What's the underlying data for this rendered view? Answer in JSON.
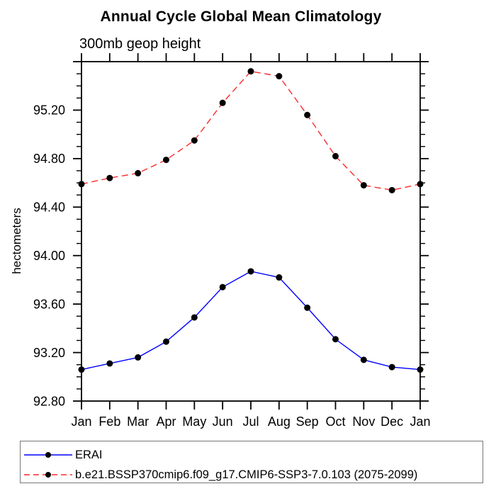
{
  "chart_data": {
    "type": "line",
    "title": "Annual Cycle Global Mean Climatology",
    "subtitle": "300mb geop height",
    "ylabel": "hectometers",
    "x_categories": [
      "Jan",
      "Feb",
      "Mar",
      "Apr",
      "May",
      "Jun",
      "Jul",
      "Aug",
      "Sep",
      "Oct",
      "Nov",
      "Dec",
      "Jan"
    ],
    "ylim": [
      92.8,
      95.6
    ],
    "yticks": [
      {
        "value": 92.8,
        "label": "92.80"
      },
      {
        "value": 93.2,
        "label": "93.20"
      },
      {
        "value": 93.6,
        "label": "93.60"
      },
      {
        "value": 94.0,
        "label": "94.00"
      },
      {
        "value": 94.4,
        "label": "94.40"
      },
      {
        "value": 94.8,
        "label": "94.80"
      },
      {
        "value": 95.2,
        "label": "95.20"
      },
      {
        "value": 95.6,
        "label": ""
      }
    ],
    "ytick_minor_step": 0.1,
    "grid": false,
    "legend_position": "bottom-left-box",
    "axis_color": "#000000",
    "marker_color": "#000000",
    "series": [
      {
        "name": "ERAI",
        "color": "#0000ff",
        "line": "solid",
        "marker": "filled-circle",
        "values": [
          93.06,
          93.11,
          93.16,
          93.29,
          93.49,
          93.74,
          93.87,
          93.82,
          93.57,
          93.31,
          93.14,
          93.08,
          93.06
        ]
      },
      {
        "name": "b.e21.BSSP370cmip6.f09_g17.CMIP6-SSP3-7.0.103 (2075-2099)",
        "color": "#fa2b2b",
        "line": "dashed",
        "marker": "filled-circle",
        "values": [
          94.59,
          94.64,
          94.68,
          94.79,
          94.95,
          95.26,
          95.52,
          95.48,
          95.16,
          94.82,
          94.58,
          94.54,
          94.59
        ]
      }
    ]
  }
}
